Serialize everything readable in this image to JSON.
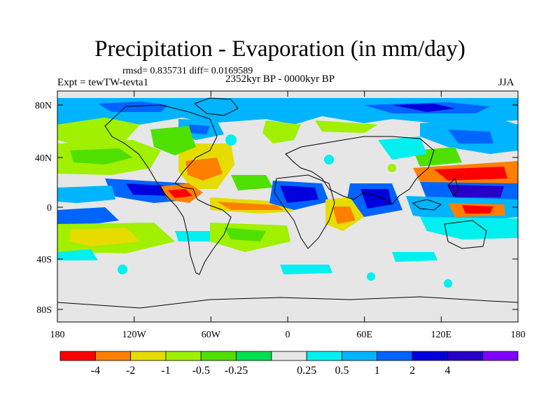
{
  "title": "Precipitation - Evaporation (in mm/day)",
  "stats": "rmsd= 0.835731 diff= 0.0169589",
  "experiment": "Expt = tewTW-tevta1",
  "period": "2352kyr BP - 0000kyr BP",
  "season": "JJA",
  "axes": {
    "x_ticks": [
      "180",
      "120W",
      "60W",
      "0",
      "60E",
      "120E",
      "180"
    ],
    "y_ticks": [
      "80N",
      "40N",
      "0",
      "40S",
      "80S"
    ]
  },
  "colorbar": {
    "colors": [
      "#ff0000",
      "#ff8000",
      "#e6dc00",
      "#a0f000",
      "#50e000",
      "#00e050",
      "#e6e6e6",
      "#00f0f0",
      "#00b4ff",
      "#0064ff",
      "#0000dc",
      "#2800c8",
      "#8000ff"
    ],
    "labels": [
      "-4",
      "-2",
      "-1",
      "-0.5",
      "-0.25",
      "0.25",
      "0.5",
      "1",
      "2",
      "4"
    ]
  },
  "colors": {
    "background": "#e6e6e6",
    "coastline": "#000000"
  }
}
